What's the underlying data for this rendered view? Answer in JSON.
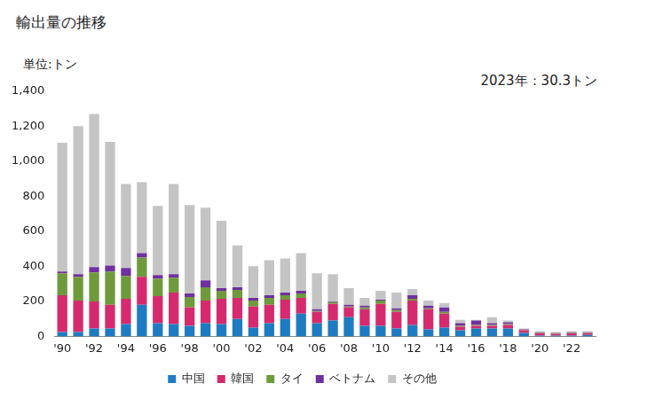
{
  "chart_data": {
    "type": "bar",
    "title": "輸出量の推移",
    "ylabel": "単位:トン",
    "annotation": "2023年：30.3トン",
    "stacked": true,
    "legend": "bottom",
    "grid": false,
    "categories": [
      "'90",
      null,
      "'92",
      null,
      "'94",
      null,
      "'96",
      null,
      "'98",
      null,
      "'00",
      null,
      "'02",
      null,
      "'04",
      null,
      "'06",
      null,
      "'08",
      null,
      "'10",
      null,
      "'12",
      null,
      "'14",
      null,
      "'16",
      null,
      "'18",
      null,
      "'20",
      null,
      "'22",
      null
    ],
    "ylim": [
      0,
      1400
    ],
    "yticks": [
      0,
      200,
      400,
      600,
      800,
      {
        "value": 1000,
        "label": "1,000"
      },
      {
        "value": 1200,
        "label": "1,200"
      },
      {
        "value": 1400,
        "label": "1,400"
      }
    ],
    "series": [
      {
        "name": "中国",
        "color": "#1f7bc1",
        "values": [
          25,
          25,
          45,
          45,
          70,
          180,
          75,
          70,
          60,
          75,
          70,
          100,
          50,
          75,
          100,
          130,
          75,
          90,
          110,
          60,
          60,
          45,
          65,
          40,
          50,
          35,
          45,
          45,
          45,
          20,
          5,
          5,
          5,
          8
        ]
      },
      {
        "name": "韓国",
        "color": "#d62a6e",
        "values": [
          210,
          180,
          155,
          135,
          145,
          160,
          155,
          180,
          105,
          130,
          145,
          120,
          120,
          105,
          110,
          90,
          65,
          95,
          55,
          95,
          125,
          95,
          140,
          115,
          80,
          20,
          15,
          15,
          20,
          15,
          12,
          10,
          12,
          10
        ]
      },
      {
        "name": "タイ",
        "color": "#6e9a3c",
        "values": [
          125,
          135,
          165,
          190,
          130,
          110,
          100,
          85,
          60,
          75,
          45,
          45,
          35,
          40,
          25,
          25,
          5,
          10,
          5,
          10,
          20,
          10,
          10,
          5,
          10,
          5,
          5,
          5,
          5,
          3,
          3,
          3,
          3,
          3
        ]
      },
      {
        "name": "ベトナム",
        "color": "#7030a0",
        "values": [
          10,
          15,
          30,
          35,
          45,
          25,
          20,
          20,
          20,
          40,
          15,
          15,
          15,
          15,
          15,
          15,
          10,
          5,
          10,
          10,
          5,
          10,
          20,
          15,
          25,
          15,
          25,
          10,
          10,
          2,
          3,
          2,
          3,
          2
        ]
      },
      {
        "name": "その他",
        "color": "#c4c4c4",
        "values": [
          735,
          845,
          875,
          705,
          480,
          405,
          395,
          515,
          505,
          415,
          385,
          240,
          180,
          200,
          195,
          215,
          205,
          155,
          95,
          45,
          50,
          90,
          35,
          30,
          25,
          20,
          5,
          35,
          10,
          5,
          7,
          5,
          7,
          7.3
        ]
      }
    ]
  }
}
